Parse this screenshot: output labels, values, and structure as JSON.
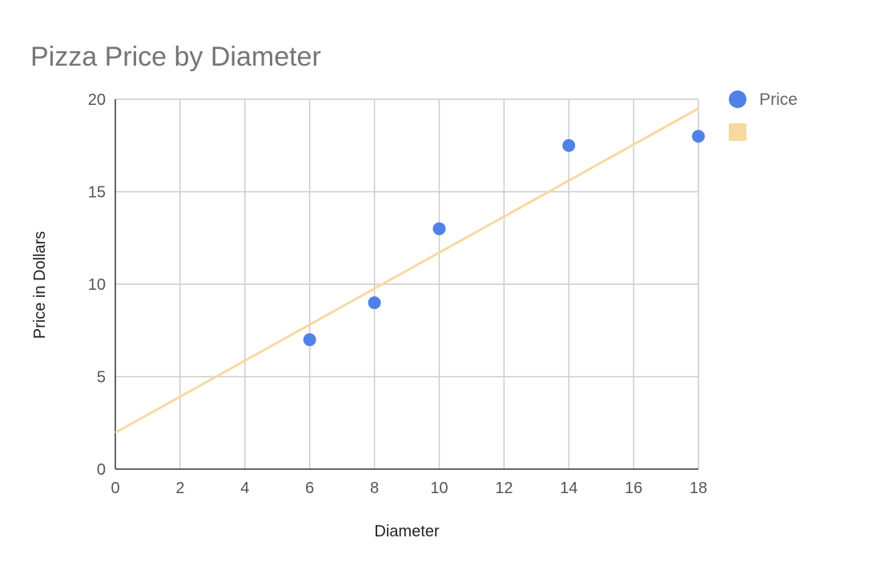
{
  "chart_data": {
    "type": "scatter",
    "title": "Pizza Price by Diameter",
    "xlabel": "Diameter",
    "ylabel": "Price in Dollars",
    "xlim": [
      0,
      18
    ],
    "ylim": [
      0,
      20
    ],
    "x_ticks": [
      0,
      2,
      4,
      6,
      8,
      10,
      12,
      14,
      16,
      18
    ],
    "y_ticks": [
      0,
      5,
      10,
      15,
      20
    ],
    "grid": true,
    "legend_position": "right",
    "series": [
      {
        "name": "Price",
        "type": "scatter",
        "color": "#4f81e6",
        "points": [
          {
            "x": 6,
            "y": 7
          },
          {
            "x": 8,
            "y": 9
          },
          {
            "x": 10,
            "y": 13
          },
          {
            "x": 14,
            "y": 17.5
          },
          {
            "x": 18,
            "y": 18
          }
        ]
      },
      {
        "name": "",
        "type": "line",
        "color": "#f7d9a0",
        "points": [
          {
            "x": 0,
            "y": 1.97
          },
          {
            "x": 18,
            "y": 19.5
          }
        ]
      }
    ]
  }
}
